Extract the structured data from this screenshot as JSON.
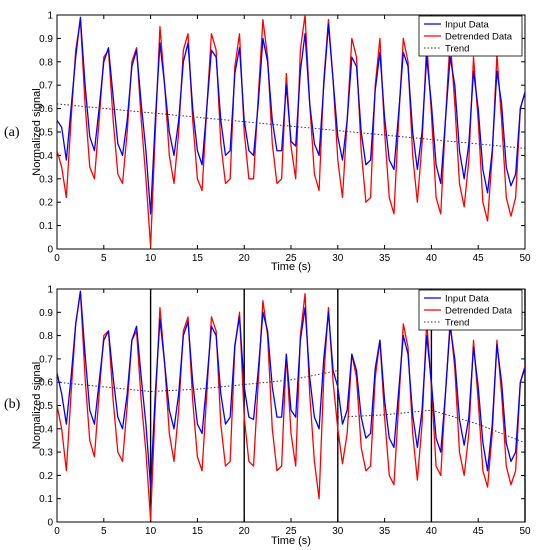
{
  "chart_data": [
    {
      "panel_label": "(a)",
      "type": "line",
      "xlabel": "Time (s)",
      "ylabel": "Normalized signal",
      "xlim": [
        0,
        50
      ],
      "ylim": [
        0,
        1
      ],
      "xticks": [
        0,
        5,
        10,
        15,
        20,
        25,
        30,
        35,
        40,
        45,
        50
      ],
      "yticks": [
        0,
        0.1,
        0.2,
        0.3,
        0.4,
        0.5,
        0.6,
        0.7,
        0.8,
        0.9,
        1
      ],
      "legend_position": "top-right",
      "vertical_lines": [],
      "series": [
        {
          "name": "Input Data",
          "color": "#0000ff",
          "style": "solid",
          "x": [
            0,
            0.5,
            1,
            1.5,
            2,
            2.5,
            3,
            3.5,
            4,
            4.5,
            5,
            5.5,
            6,
            6.5,
            7,
            7.5,
            8,
            8.5,
            9,
            9.5,
            10,
            10.5,
            11,
            11.5,
            12,
            12.5,
            13,
            13.5,
            14,
            14.5,
            15,
            15.5,
            16,
            16.5,
            17,
            17.5,
            18,
            18.5,
            19,
            19.5,
            20,
            20.5,
            21,
            21.5,
            22,
            22.5,
            23,
            23.5,
            24,
            24.5,
            25,
            25.5,
            26,
            26.5,
            27,
            27.5,
            28,
            28.5,
            29,
            29.5,
            30,
            30.5,
            31,
            31.5,
            32,
            32.5,
            33,
            33.5,
            34,
            34.5,
            35,
            35.5,
            36,
            36.5,
            37,
            37.5,
            38,
            38.5,
            39,
            39.5,
            40,
            40.5,
            41,
            41.5,
            42,
            42.5,
            43,
            43.5,
            44,
            44.5,
            45,
            45.5,
            46,
            46.5,
            47,
            47.5,
            48,
            48.5,
            49,
            49.5,
            50
          ],
          "y": [
            0.55,
            0.52,
            0.38,
            0.6,
            0.82,
            0.99,
            0.7,
            0.48,
            0.42,
            0.6,
            0.8,
            0.86,
            0.65,
            0.45,
            0.4,
            0.55,
            0.78,
            0.85,
            0.62,
            0.42,
            0.15,
            0.55,
            0.88,
            0.7,
            0.5,
            0.4,
            0.55,
            0.8,
            0.88,
            0.6,
            0.42,
            0.36,
            0.6,
            0.85,
            0.82,
            0.55,
            0.4,
            0.42,
            0.75,
            0.86,
            0.55,
            0.42,
            0.4,
            0.62,
            0.9,
            0.8,
            0.55,
            0.42,
            0.42,
            0.7,
            0.46,
            0.44,
            0.76,
            0.92,
            0.62,
            0.45,
            0.4,
            0.7,
            0.96,
            0.72,
            0.48,
            0.38,
            0.55,
            0.82,
            0.78,
            0.5,
            0.36,
            0.38,
            0.68,
            0.84,
            0.56,
            0.38,
            0.34,
            0.58,
            0.84,
            0.78,
            0.5,
            0.34,
            0.5,
            0.82,
            0.62,
            0.36,
            0.28,
            0.55,
            0.82,
            0.7,
            0.42,
            0.3,
            0.45,
            0.76,
            0.6,
            0.34,
            0.24,
            0.42,
            0.76,
            0.62,
            0.35,
            0.27,
            0.32,
            0.6,
            0.67
          ]
        },
        {
          "name": "Detrended Data",
          "color": "#ff0000",
          "style": "solid",
          "x": [
            0,
            0.5,
            1,
            1.5,
            2,
            2.5,
            3,
            3.5,
            4,
            4.5,
            5,
            5.5,
            6,
            6.5,
            7,
            7.5,
            8,
            8.5,
            9,
            9.5,
            10,
            10.5,
            11,
            11.5,
            12,
            12.5,
            13,
            13.5,
            14,
            14.5,
            15,
            15.5,
            16,
            16.5,
            17,
            17.5,
            18,
            18.5,
            19,
            19.5,
            20,
            20.5,
            21,
            21.5,
            22,
            22.5,
            23,
            23.5,
            24,
            24.5,
            25,
            25.5,
            26,
            26.5,
            27,
            27.5,
            28,
            28.5,
            29,
            29.5,
            30,
            30.5,
            31,
            31.5,
            32,
            32.5,
            33,
            33.5,
            34,
            34.5,
            35,
            35.5,
            36,
            36.5,
            37,
            37.5,
            38,
            38.5,
            39,
            39.5,
            40,
            40.5,
            41,
            41.5,
            42,
            42.5,
            43,
            43.5,
            44,
            44.5,
            45,
            45.5,
            46,
            46.5,
            47,
            47.5,
            48,
            48.5,
            49,
            49.5,
            50
          ],
          "y": [
            0.42,
            0.35,
            0.22,
            0.55,
            0.85,
            0.98,
            0.62,
            0.35,
            0.3,
            0.55,
            0.82,
            0.85,
            0.55,
            0.32,
            0.28,
            0.5,
            0.8,
            0.86,
            0.55,
            0.3,
            0.01,
            0.5,
            0.95,
            0.7,
            0.4,
            0.28,
            0.5,
            0.85,
            0.92,
            0.55,
            0.3,
            0.25,
            0.6,
            0.92,
            0.85,
            0.45,
            0.28,
            0.3,
            0.78,
            0.92,
            0.5,
            0.3,
            0.3,
            0.65,
            0.98,
            0.82,
            0.45,
            0.28,
            0.3,
            0.75,
            0.44,
            0.3,
            0.85,
            1.0,
            0.62,
            0.32,
            0.25,
            0.72,
            0.98,
            0.72,
            0.38,
            0.22,
            0.55,
            0.9,
            0.82,
            0.42,
            0.2,
            0.22,
            0.7,
            0.9,
            0.5,
            0.22,
            0.15,
            0.55,
            0.9,
            0.8,
            0.4,
            0.2,
            0.45,
            0.88,
            0.58,
            0.22,
            0.15,
            0.55,
            0.9,
            0.62,
            0.28,
            0.18,
            0.38,
            0.82,
            0.55,
            0.2,
            0.12,
            0.4,
            0.83,
            0.55,
            0.22,
            0.14,
            0.22,
            0.6,
            0.67
          ]
        },
        {
          "name": "Trend",
          "color": "#333333",
          "style": "dotted",
          "x": [
            0,
            50
          ],
          "y": [
            0.62,
            0.43
          ]
        }
      ]
    },
    {
      "panel_label": "(b)",
      "type": "line",
      "xlabel": "Time (s)",
      "ylabel": "Normalized signal",
      "xlim": [
        0,
        50
      ],
      "ylim": [
        0,
        1
      ],
      "xticks": [
        0,
        5,
        10,
        15,
        20,
        25,
        30,
        35,
        40,
        45,
        50
      ],
      "yticks": [
        0,
        0.1,
        0.2,
        0.3,
        0.4,
        0.5,
        0.6,
        0.7,
        0.8,
        0.9,
        1
      ],
      "legend_position": "top-right",
      "vertical_lines": [
        10,
        20,
        30,
        40,
        50
      ],
      "series": [
        {
          "name": "Input Data",
          "color": "#0000ff",
          "style": "solid",
          "x": [
            0,
            0.5,
            1,
            1.5,
            2,
            2.5,
            3,
            3.5,
            4,
            4.5,
            5,
            5.5,
            6,
            6.5,
            7,
            7.5,
            8,
            8.5,
            9,
            9.5,
            10,
            10.5,
            11,
            11.5,
            12,
            12.5,
            13,
            13.5,
            14,
            14.5,
            15,
            15.5,
            16,
            16.5,
            17,
            17.5,
            18,
            18.5,
            19,
            19.5,
            20,
            20.5,
            21,
            21.5,
            22,
            22.5,
            23,
            23.5,
            24,
            24.5,
            25,
            25.5,
            26,
            26.5,
            27,
            27.5,
            28,
            28.5,
            29,
            29.5,
            30,
            30.5,
            31,
            31.5,
            32,
            32.5,
            33,
            33.5,
            34,
            34.5,
            35,
            35.5,
            36,
            36.5,
            37,
            37.5,
            38,
            38.5,
            39,
            39.5,
            40,
            40.5,
            41,
            41.5,
            42,
            42.5,
            43,
            43.5,
            44,
            44.5,
            45,
            45.5,
            46,
            46.5,
            47,
            47.5,
            48,
            48.5,
            49,
            49.5,
            50
          ],
          "y": [
            0.64,
            0.55,
            0.42,
            0.62,
            0.85,
            0.99,
            0.72,
            0.48,
            0.42,
            0.6,
            0.78,
            0.82,
            0.62,
            0.45,
            0.4,
            0.55,
            0.78,
            0.84,
            0.62,
            0.42,
            0.15,
            0.55,
            0.87,
            0.68,
            0.48,
            0.4,
            0.55,
            0.8,
            0.86,
            0.6,
            0.42,
            0.38,
            0.6,
            0.84,
            0.8,
            0.55,
            0.42,
            0.45,
            0.76,
            0.88,
            0.58,
            0.45,
            0.44,
            0.65,
            0.9,
            0.82,
            0.58,
            0.45,
            0.45,
            0.72,
            0.48,
            0.45,
            0.78,
            0.92,
            0.62,
            0.45,
            0.4,
            0.7,
            0.9,
            0.65,
            0.58,
            0.42,
            0.48,
            0.72,
            0.65,
            0.45,
            0.36,
            0.38,
            0.66,
            0.78,
            0.52,
            0.36,
            0.32,
            0.56,
            0.8,
            0.72,
            0.46,
            0.32,
            0.48,
            0.8,
            0.6,
            0.36,
            0.3,
            0.55,
            0.84,
            0.7,
            0.44,
            0.33,
            0.45,
            0.75,
            0.58,
            0.34,
            0.22,
            0.42,
            0.76,
            0.6,
            0.34,
            0.26,
            0.3,
            0.6,
            0.66
          ]
        },
        {
          "name": "Detrended Data",
          "color": "#ff0000",
          "style": "solid",
          "x": [
            0,
            0.5,
            1,
            1.5,
            2,
            2.5,
            3,
            3.5,
            4,
            4.5,
            5,
            5.5,
            6,
            6.5,
            7,
            7.5,
            8,
            8.5,
            9,
            9.5,
            10,
            10.5,
            11,
            11.5,
            12,
            12.5,
            13,
            13.5,
            14,
            14.5,
            15,
            15.5,
            16,
            16.5,
            17,
            17.5,
            18,
            18.5,
            19,
            19.5,
            20,
            20.5,
            21,
            21.5,
            22,
            22.5,
            23,
            23.5,
            24,
            24.5,
            25,
            25.5,
            26,
            26.5,
            27,
            27.5,
            28,
            28.5,
            29,
            29.5,
            30,
            30.5,
            31,
            31.5,
            32,
            32.5,
            33,
            33.5,
            34,
            34.5,
            35,
            35.5,
            36,
            36.5,
            37,
            37.5,
            38,
            38.5,
            39,
            39.5,
            40,
            40.5,
            41,
            41.5,
            42,
            42.5,
            43,
            43.5,
            44,
            44.5,
            45,
            45.5,
            46,
            46.5,
            47,
            47.5,
            48,
            48.5,
            49,
            49.5,
            50
          ],
          "y": [
            0.5,
            0.4,
            0.22,
            0.55,
            0.85,
            0.99,
            0.62,
            0.35,
            0.28,
            0.55,
            0.8,
            0.82,
            0.52,
            0.3,
            0.26,
            0.5,
            0.78,
            0.82,
            0.52,
            0.3,
            0.01,
            0.5,
            0.92,
            0.68,
            0.38,
            0.26,
            0.48,
            0.82,
            0.88,
            0.52,
            0.28,
            0.22,
            0.55,
            0.88,
            0.82,
            0.42,
            0.24,
            0.26,
            0.75,
            0.9,
            0.45,
            0.26,
            0.24,
            0.6,
            0.95,
            0.8,
            0.4,
            0.22,
            0.24,
            0.72,
            0.38,
            0.24,
            0.8,
            0.98,
            0.55,
            0.26,
            0.1,
            0.62,
            0.92,
            0.6,
            0.4,
            0.25,
            0.38,
            0.72,
            0.62,
            0.32,
            0.22,
            0.24,
            0.62,
            0.78,
            0.45,
            0.2,
            0.16,
            0.5,
            0.85,
            0.75,
            0.38,
            0.18,
            0.42,
            0.86,
            0.58,
            0.24,
            0.2,
            0.55,
            0.86,
            0.66,
            0.3,
            0.2,
            0.38,
            0.78,
            0.52,
            0.22,
            0.15,
            0.38,
            0.78,
            0.55,
            0.24,
            0.16,
            0.22,
            0.6,
            0.67
          ]
        },
        {
          "name": "Trend",
          "color": "#333333",
          "style": "dotted",
          "x": [
            0,
            5,
            10,
            15,
            20,
            25,
            30,
            30.01,
            35,
            40,
            45,
            50
          ],
          "y": [
            0.6,
            0.58,
            0.56,
            0.57,
            0.59,
            0.61,
            0.65,
            0.45,
            0.46,
            0.48,
            0.42,
            0.34
          ]
        }
      ]
    }
  ]
}
